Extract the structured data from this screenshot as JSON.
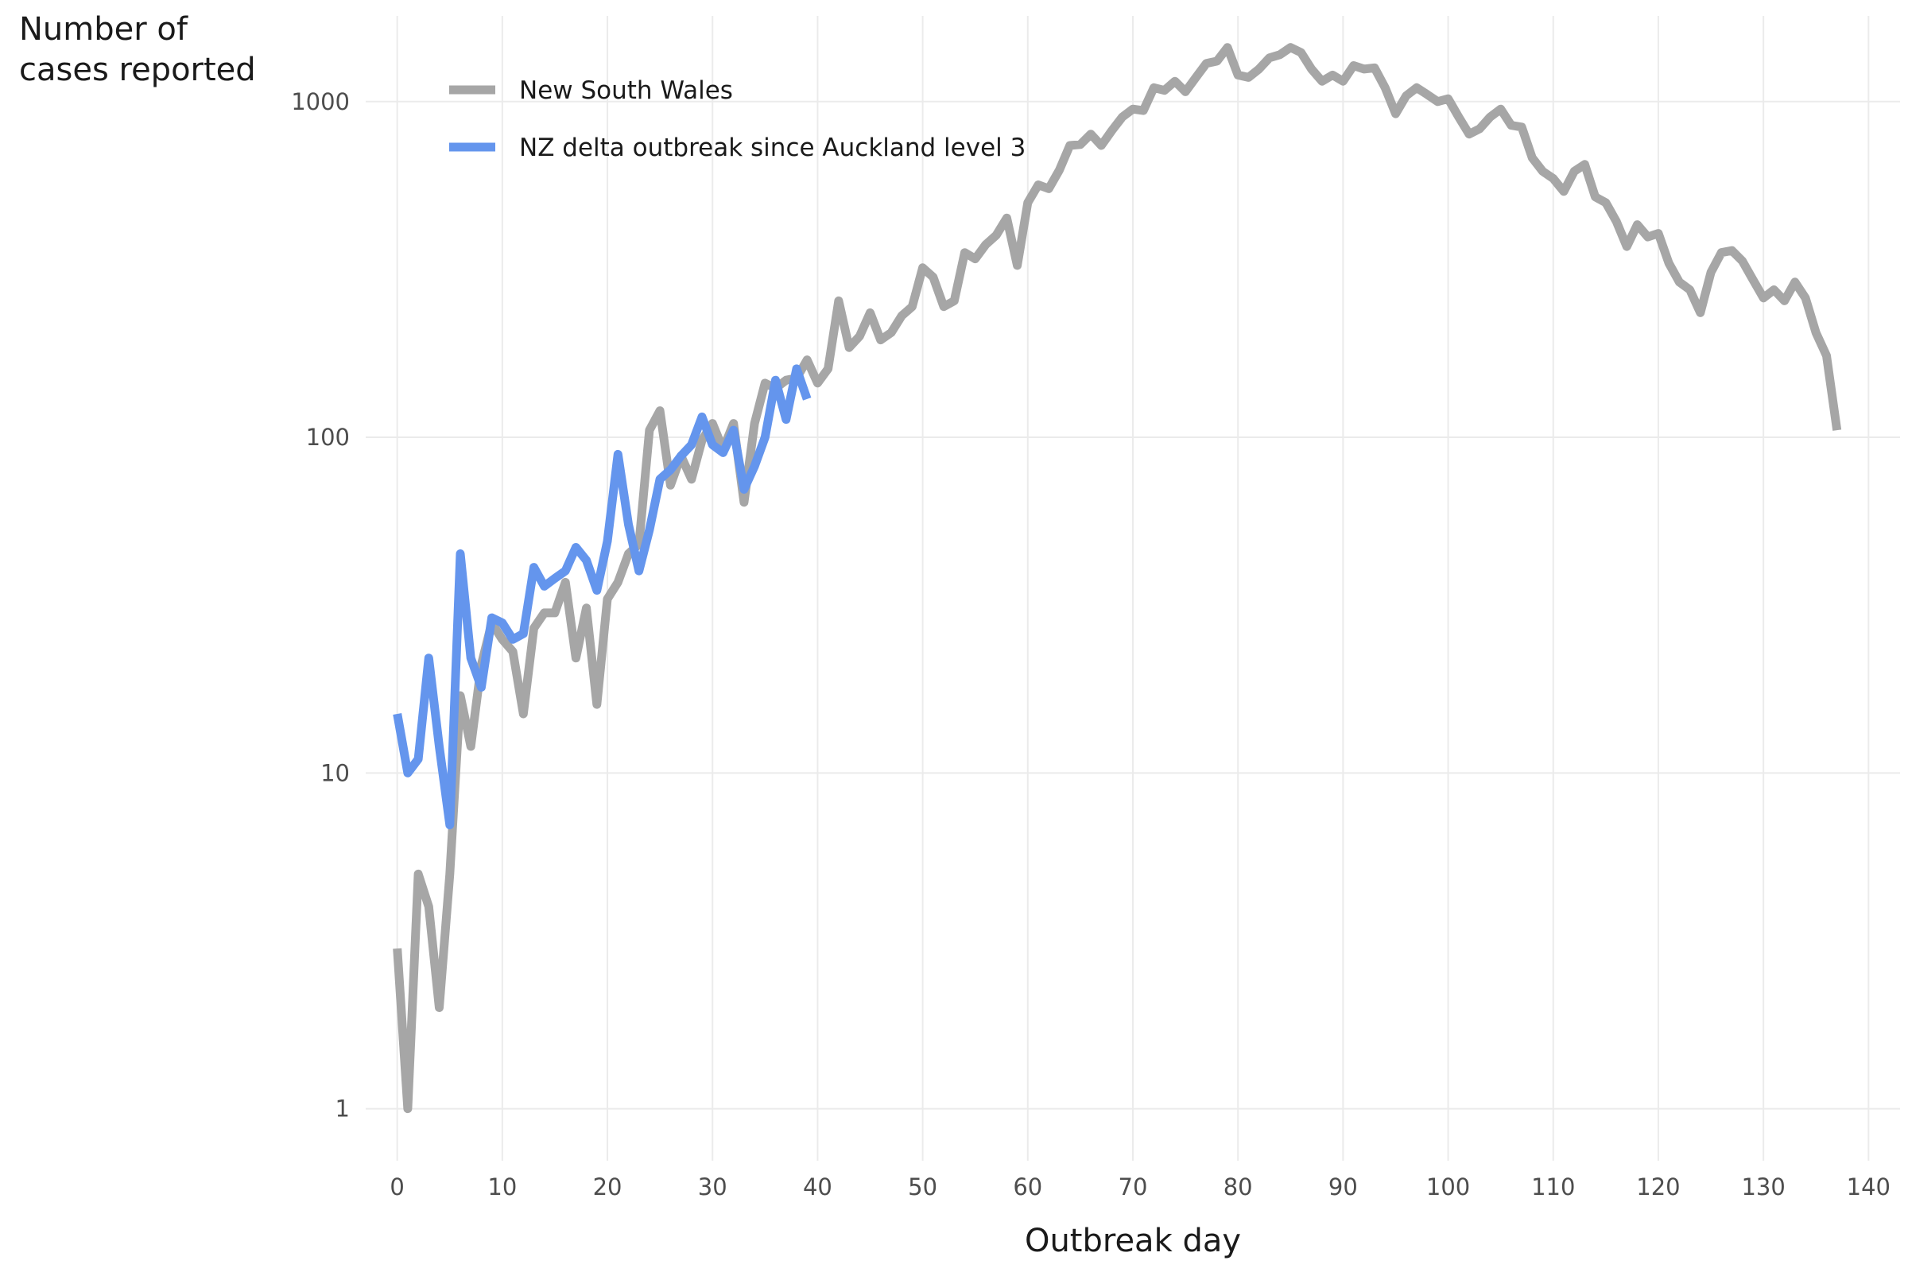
{
  "chart_data": {
    "type": "line",
    "xlabel": "Outbreak day",
    "ylabel": "Number of\ncases reported",
    "y_scale": "log10",
    "xlim": [
      -3,
      143
    ],
    "ylim": [
      0.7,
      1800
    ],
    "x_ticks": [
      0,
      10,
      20,
      30,
      40,
      50,
      60,
      70,
      80,
      90,
      100,
      110,
      120,
      130,
      140
    ],
    "y_ticks": [
      1,
      10,
      100,
      1000
    ],
    "y_tick_labels": [
      "1",
      "10",
      "100",
      "1000"
    ],
    "grid": true,
    "legend_position": "top-left",
    "colors": {
      "nsw": "#a6a6a6",
      "nz": "#6495ed"
    },
    "series": [
      {
        "name": "New South Wales",
        "color": "#a6a6a6",
        "x": [
          0,
          1,
          2,
          3,
          4,
          5,
          6,
          7,
          8,
          9,
          10,
          11,
          12,
          13,
          14,
          15,
          16,
          17,
          18,
          19,
          20,
          21,
          22,
          23,
          24,
          25,
          26,
          27,
          28,
          29,
          30,
          31,
          32,
          33,
          34,
          35,
          36,
          37,
          38,
          39,
          40,
          41,
          42,
          43,
          44,
          45,
          46,
          47,
          48,
          49,
          50,
          51,
          52,
          53,
          54,
          55,
          56,
          57,
          58,
          59,
          60,
          61,
          62,
          63,
          64,
          65,
          66,
          67,
          68,
          69,
          70,
          71,
          72,
          73,
          74,
          75,
          76,
          77,
          78,
          79,
          80,
          81,
          82,
          83,
          84,
          85,
          86,
          87,
          88,
          89,
          90,
          91,
          92,
          93,
          94,
          95,
          96,
          97,
          98,
          99,
          100,
          101,
          102,
          103,
          104,
          105,
          106,
          107,
          108,
          109,
          110,
          111,
          112,
          113,
          114,
          115,
          116,
          117,
          118,
          119,
          120,
          121,
          122,
          123,
          124,
          125,
          126,
          127,
          128,
          129,
          130,
          131,
          132,
          133,
          134,
          135,
          136,
          137
        ],
        "values": [
          3,
          1,
          5,
          4,
          2,
          5,
          17,
          12,
          21,
          28,
          25,
          23,
          15,
          27,
          30,
          30,
          37,
          22,
          31,
          16,
          33,
          37,
          45,
          48,
          105,
          120,
          72,
          88,
          75,
          98,
          110,
          92,
          110,
          64,
          110,
          145,
          140,
          148,
          150,
          170,
          145,
          160,
          255,
          185,
          200,
          235,
          195,
          205,
          230,
          245,
          320,
          300,
          245,
          255,
          355,
          340,
          375,
          400,
          450,
          325,
          500,
          565,
          550,
          625,
          740,
          745,
          800,
          740,
          820,
          900,
          950,
          940,
          1100,
          1080,
          1150,
          1070,
          1180,
          1300,
          1320,
          1450,
          1200,
          1180,
          1250,
          1350,
          1380,
          1450,
          1400,
          1250,
          1150,
          1200,
          1150,
          1280,
          1250,
          1260,
          1100,
          920,
          1040,
          1100,
          1050,
          1000,
          1020,
          900,
          800,
          830,
          900,
          950,
          850,
          840,
          680,
          620,
          590,
          540,
          620,
          650,
          520,
          500,
          440,
          370,
          430,
          395,
          405,
          330,
          290,
          275,
          235,
          310,
          355,
          360,
          335,
          295,
          260,
          275,
          255,
          290,
          260,
          205,
          175,
          105
        ]
      },
      {
        "name": "NZ delta outbreak since Auckland level 3",
        "color": "#6495ed",
        "x": [
          0,
          1,
          2,
          3,
          4,
          5,
          6,
          7,
          8,
          9,
          10,
          11,
          12,
          13,
          14,
          15,
          16,
          17,
          18,
          19,
          20,
          21,
          22,
          23,
          24,
          25,
          26,
          27,
          28,
          29,
          30,
          31,
          32,
          33,
          34,
          35,
          36,
          37,
          38,
          39
        ],
        "values": [
          15,
          10,
          11,
          22,
          12,
          7,
          45,
          22,
          18,
          29,
          28,
          25,
          26,
          41,
          36,
          38,
          40,
          47,
          43,
          35,
          49,
          89,
          55,
          40,
          53,
          75,
          80,
          88,
          95,
          115,
          95,
          90,
          105,
          70,
          82,
          100,
          148,
          113,
          160,
          130
        ]
      }
    ]
  }
}
